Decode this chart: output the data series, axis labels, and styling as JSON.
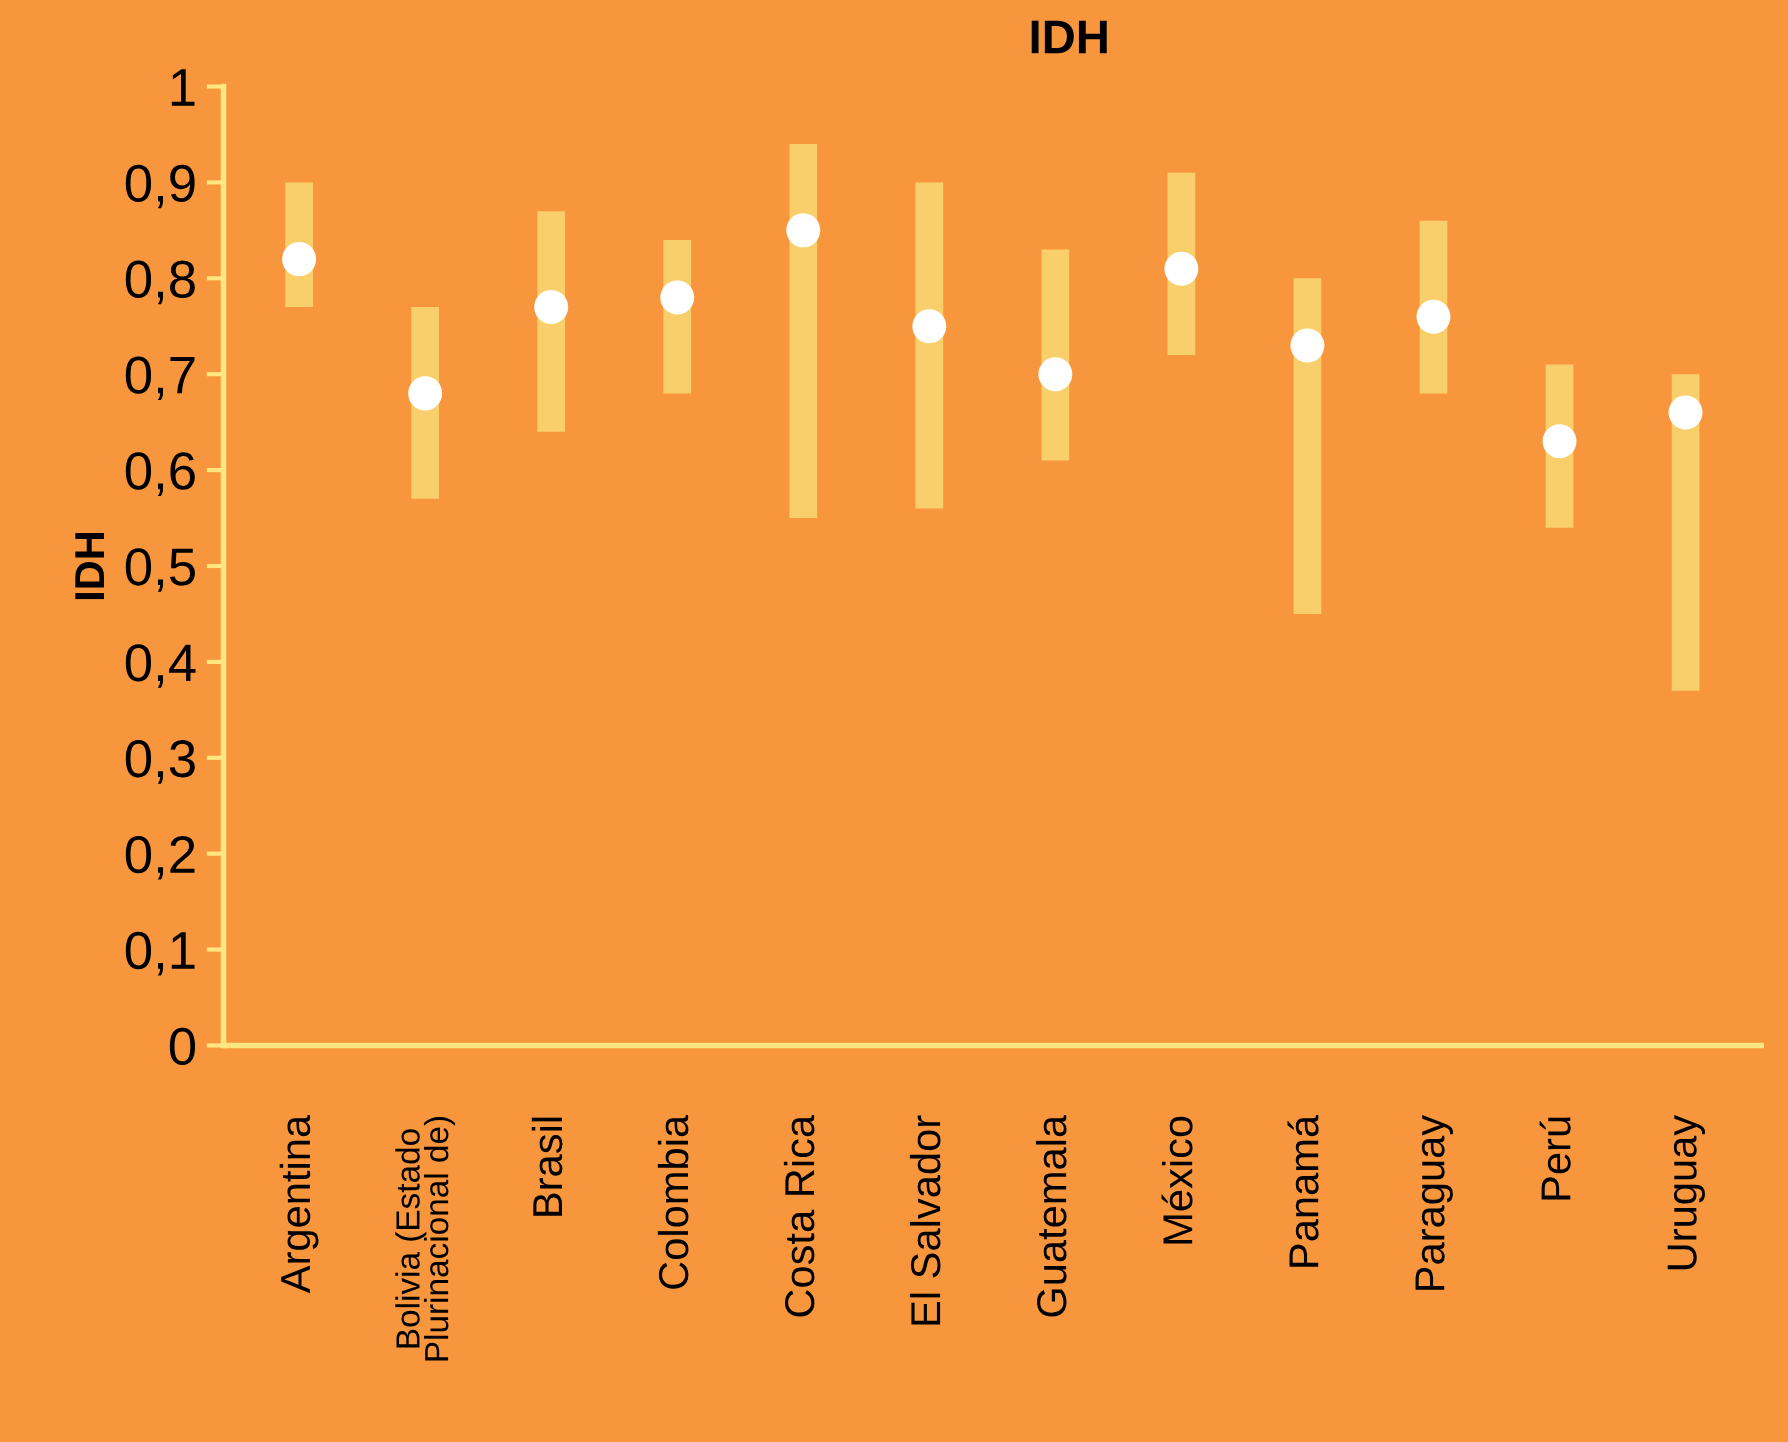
{
  "chart_data": {
    "type": "bar",
    "title": "IDH",
    "ylabel": "IDH",
    "categories": [
      "Argentina",
      "Bolivia (Estado\nPlurinacional de)",
      "Brasil",
      "Colombia",
      "Costa Rica",
      "El Salvador",
      "Guatemala",
      "México",
      "Panamá",
      "Paraguay",
      "Perú",
      "Uruguay"
    ],
    "series": [
      {
        "color": "#f9cf6b",
        "base": [
          0.77,
          0.57,
          0.64,
          0.68,
          0.55,
          0.56,
          0.61,
          0.72,
          0.45,
          0.68,
          0.54,
          0.37
        ],
        "values": [
          0.13,
          0.2,
          0.23,
          0.16,
          0.39,
          0.34,
          0.22,
          0.19,
          0.35,
          0.18,
          0.17,
          0.33
        ]
      },
      {
        "type": "scatter",
        "color": "#ffffff",
        "marker": "circle",
        "values": [
          0.82,
          0.68,
          0.77,
          0.78,
          0.85,
          0.75,
          0.7,
          0.81,
          0.73,
          0.76,
          0.63,
          0.66
        ]
      }
    ],
    "ylim": [
      0,
      1
    ],
    "yticks": [
      0,
      {
        "value": 0.1,
        "label": "0,1"
      },
      {
        "value": 0.2,
        "label": "0,2"
      },
      {
        "value": 0.3,
        "label": "0,3"
      },
      {
        "value": 0.4,
        "label": "0,4"
      },
      {
        "value": 0.5,
        "label": "0,5"
      },
      {
        "value": 0.6,
        "label": "0,6"
      },
      {
        "value": 0.7,
        "label": "0,7"
      },
      {
        "value": 0.8,
        "label": "0,8"
      },
      {
        "value": 0.9,
        "label": "0,9"
      },
      1
    ],
    "grid": false
  }
}
